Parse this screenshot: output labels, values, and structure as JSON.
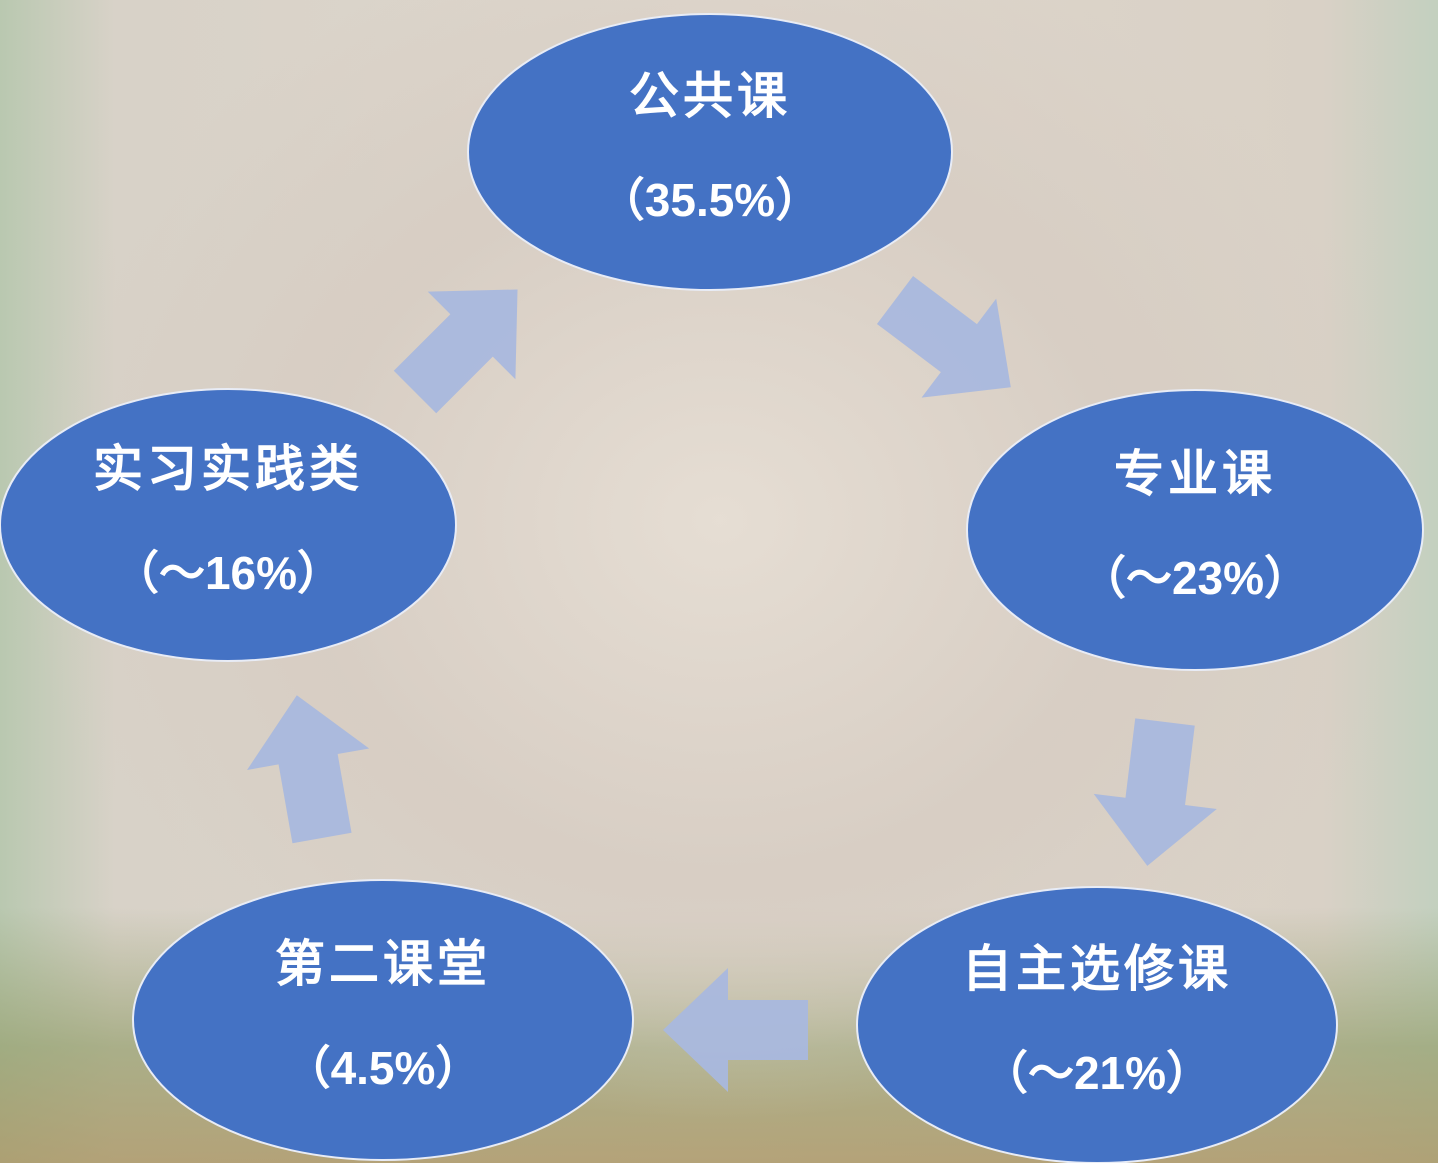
{
  "nodes": [
    {
      "label": "公共课",
      "share": "（35.5%）"
    },
    {
      "label": "专业课",
      "share": "（～23%）"
    },
    {
      "label": "自主选修课",
      "share": "（～21%）"
    },
    {
      "label": "第二课堂",
      "share": "（4.5%）"
    },
    {
      "label": "实习实践类",
      "share": "（～16%）"
    }
  ]
}
